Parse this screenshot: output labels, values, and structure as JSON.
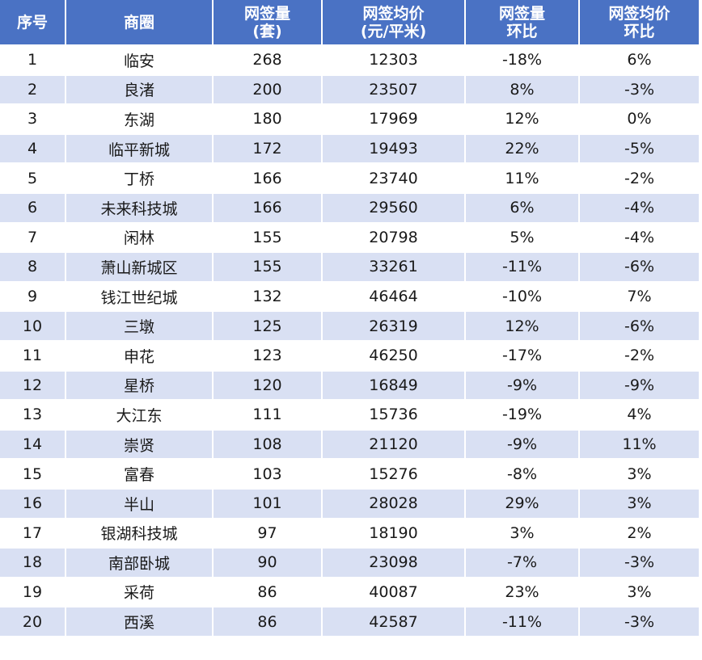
{
  "table": {
    "headers": [
      {
        "line1": "序号",
        "line2": ""
      },
      {
        "line1": "商圈",
        "line2": ""
      },
      {
        "line1": "网签量",
        "line2": "(套)"
      },
      {
        "line1": "网签均价",
        "line2": "(元/平米)"
      },
      {
        "line1": "网签量",
        "line2": "环比"
      },
      {
        "line1": "网签均价",
        "line2": "环比"
      }
    ],
    "rows": [
      [
        "1",
        "临安",
        "268",
        "12303",
        "-18%",
        "6%"
      ],
      [
        "2",
        "良渚",
        "200",
        "23507",
        "8%",
        "-3%"
      ],
      [
        "3",
        "东湖",
        "180",
        "17969",
        "12%",
        "0%"
      ],
      [
        "4",
        "临平新城",
        "172",
        "19493",
        "22%",
        "-5%"
      ],
      [
        "5",
        "丁桥",
        "166",
        "23740",
        "11%",
        "-2%"
      ],
      [
        "6",
        "未来科技城",
        "166",
        "29560",
        "6%",
        "-4%"
      ],
      [
        "7",
        "闲林",
        "155",
        "20798",
        "5%",
        "-4%"
      ],
      [
        "8",
        "萧山新城区",
        "155",
        "33261",
        "-11%",
        "-6%"
      ],
      [
        "9",
        "钱江世纪城",
        "132",
        "46464",
        "-10%",
        "7%"
      ],
      [
        "10",
        "三墩",
        "125",
        "26319",
        "12%",
        "-6%"
      ],
      [
        "11",
        "申花",
        "123",
        "46250",
        "-17%",
        "-2%"
      ],
      [
        "12",
        "星桥",
        "120",
        "16849",
        "-9%",
        "-9%"
      ],
      [
        "13",
        "大江东",
        "111",
        "15736",
        "-19%",
        "4%"
      ],
      [
        "14",
        "崇贤",
        "108",
        "21120",
        "-9%",
        "11%"
      ],
      [
        "15",
        "富春",
        "103",
        "15276",
        "-8%",
        "3%"
      ],
      [
        "16",
        "半山",
        "101",
        "28028",
        "29%",
        "3%"
      ],
      [
        "17",
        "银湖科技城",
        "97",
        "18190",
        "3%",
        "2%"
      ],
      [
        "18",
        "南部卧城",
        "90",
        "23098",
        "-7%",
        "-3%"
      ],
      [
        "19",
        "采荷",
        "86",
        "40087",
        "23%",
        "3%"
      ],
      [
        "20",
        "西溪",
        "86",
        "42587",
        "-11%",
        "-3%"
      ]
    ]
  },
  "colors": {
    "header_bg": "#4a72c4",
    "header_text": "#ffffff",
    "row_alt_bg": "#d9e0f3",
    "row_bg": "#ffffff"
  }
}
